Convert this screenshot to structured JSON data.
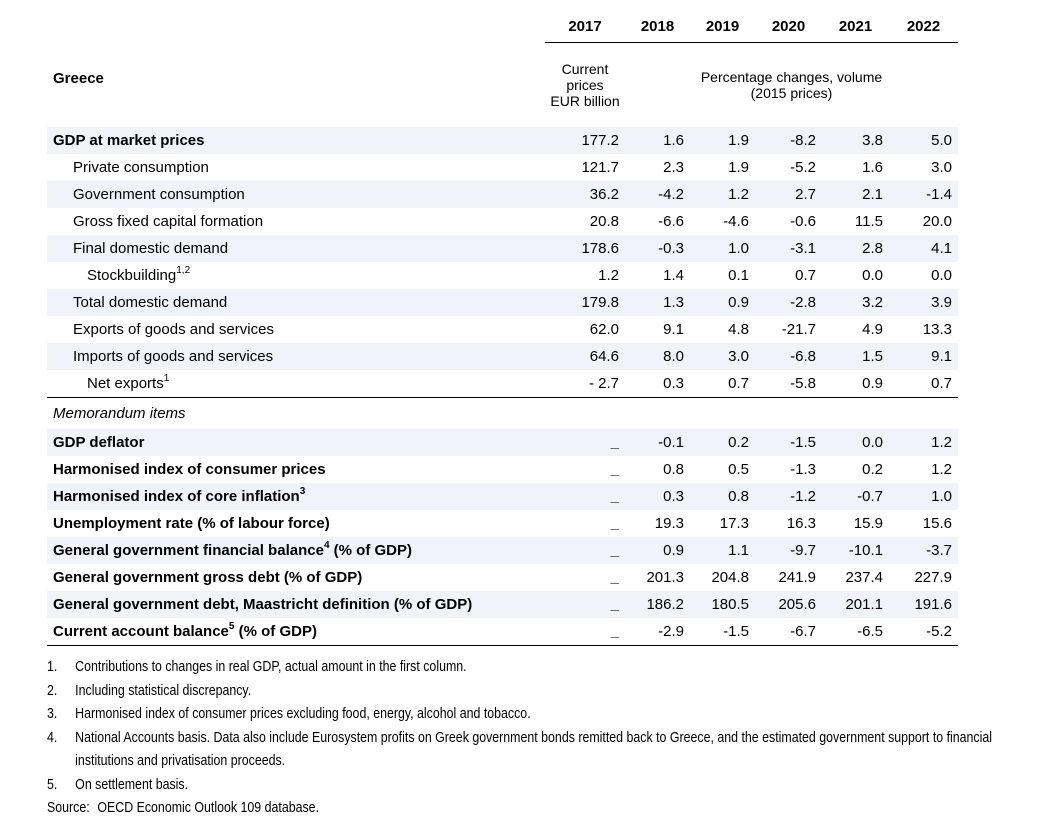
{
  "page": {
    "region_label": "Greece"
  },
  "chart_data": {
    "type": "table",
    "title": "Greece",
    "columns": [
      "2017",
      "2018",
      "2019",
      "2020",
      "2021",
      "2022"
    ],
    "column_units": [
      "Current prices EUR billion",
      "Percentage changes, volume (2015 prices)"
    ],
    "rows_note": "see table.rows and table.memo.rows for all values"
  },
  "table": {
    "years": [
      "2017",
      "2018",
      "2019",
      "2020",
      "2021",
      "2022"
    ],
    "subheader": {
      "first_col_lines": [
        "Current",
        "prices",
        "EUR billion"
      ],
      "volume_note_lines": [
        "Percentage changes, volume",
        "(2015 prices)"
      ]
    },
    "rows": [
      {
        "label": "GDP at market prices",
        "sup": "",
        "suffix": "",
        "indent": 0,
        "shaded": true,
        "values": [
          "177.2",
          "1.6",
          "1.9",
          "-8.2",
          "3.8",
          "5.0"
        ]
      },
      {
        "label": "Private consumption",
        "sup": "",
        "suffix": "",
        "indent": 1,
        "shaded": false,
        "values": [
          "121.7",
          "2.3",
          "1.9",
          "-5.2",
          "1.6",
          "3.0"
        ]
      },
      {
        "label": "Government consumption",
        "sup": "",
        "suffix": "",
        "indent": 1,
        "shaded": true,
        "values": [
          "36.2",
          "-4.2",
          "1.2",
          "2.7",
          "2.1",
          "-1.4"
        ]
      },
      {
        "label": "Gross fixed capital formation",
        "sup": "",
        "suffix": "",
        "indent": 1,
        "shaded": false,
        "values": [
          "20.8",
          "-6.6",
          "-4.6",
          "-0.6",
          "11.5",
          "20.0"
        ]
      },
      {
        "label": "Final domestic demand",
        "sup": "",
        "suffix": "",
        "indent": 1,
        "shaded": true,
        "values": [
          "178.6",
          "-0.3",
          "1.0",
          "-3.1",
          "2.8",
          "4.1"
        ]
      },
      {
        "label": "Stockbuilding",
        "sup": "1,2",
        "suffix": "",
        "indent": 2,
        "shaded": false,
        "values": [
          "1.2",
          "1.4",
          "0.1",
          "0.7",
          "0.0",
          "0.0"
        ]
      },
      {
        "label": "Total domestic demand",
        "sup": "",
        "suffix": "",
        "indent": 1,
        "shaded": true,
        "values": [
          "179.8",
          "1.3",
          "0.9",
          "-2.8",
          "3.2",
          "3.9"
        ]
      },
      {
        "label": "Exports of goods and services",
        "sup": "",
        "suffix": "",
        "indent": 1,
        "shaded": false,
        "values": [
          "62.0",
          "9.1",
          "4.8",
          "-21.7",
          "4.9",
          "13.3"
        ]
      },
      {
        "label": "Imports of goods and services",
        "sup": "",
        "suffix": "",
        "indent": 1,
        "shaded": true,
        "values": [
          "64.6",
          "8.0",
          "3.0",
          "-6.8",
          "1.5",
          "9.1"
        ]
      },
      {
        "label": "Net exports",
        "sup": "1",
        "suffix": "",
        "indent": 2,
        "shaded": false,
        "rule_after": true,
        "values": [
          "- 2.7",
          "0.3",
          "0.7",
          "-5.8",
          "0.9",
          "0.7"
        ]
      }
    ],
    "memo": {
      "header": "Memorandum items",
      "rows": [
        {
          "label": "GDP deflator",
          "sup": "",
          "suffix": "",
          "indent": 0,
          "shaded": true,
          "values": [
            "_",
            "-0.1",
            "0.2",
            "-1.5",
            "0.0",
            "1.2"
          ]
        },
        {
          "label": "Harmonised index of consumer prices",
          "sup": "",
          "suffix": "",
          "indent": 0,
          "shaded": false,
          "values": [
            "_",
            "0.8",
            "0.5",
            "-1.3",
            "0.2",
            "1.2"
          ]
        },
        {
          "label": "Harmonised index of core inflation",
          "sup": "3",
          "suffix": "",
          "indent": 0,
          "shaded": true,
          "values": [
            "_",
            "0.3",
            "0.8",
            "-1.2",
            "-0.7",
            "1.0"
          ]
        },
        {
          "label": "Unemployment rate (% of labour force)",
          "sup": "",
          "suffix": "",
          "indent": 0,
          "shaded": false,
          "values": [
            "_",
            "19.3",
            "17.3",
            "16.3",
            "15.9",
            "15.6"
          ]
        },
        {
          "label": "General government financial balance",
          "sup": "4",
          "suffix": " (% of GDP)",
          "indent": 0,
          "shaded": true,
          "values": [
            "_",
            "0.9",
            "1.1",
            "-9.7",
            "-10.1",
            "-3.7"
          ]
        },
        {
          "label": "General government gross debt (% of GDP)",
          "sup": "",
          "suffix": "",
          "indent": 0,
          "shaded": false,
          "values": [
            "_",
            "201.3",
            "204.8",
            "241.9",
            "237.4",
            "227.9"
          ]
        },
        {
          "label": "General government debt, Maastricht definition (% of GDP)",
          "sup": "",
          "suffix": "",
          "indent": 0,
          "shaded": true,
          "values": [
            "_",
            "186.2",
            "180.5",
            "205.6",
            "201.1",
            "191.6"
          ]
        },
        {
          "label": "Current account balance",
          "sup": "5",
          "suffix": " (% of GDP)",
          "indent": 0,
          "shaded": false,
          "rule_after": true,
          "values": [
            "_",
            "-2.9",
            "-1.5",
            "-6.7",
            "-6.5",
            "-5.2"
          ]
        }
      ]
    }
  },
  "footnotes": {
    "items": [
      {
        "num": "1.",
        "text": "Contributions to changes in real GDP, actual amount in the first column."
      },
      {
        "num": "2.",
        "text": "Including statistical discrepancy."
      },
      {
        "num": "3.",
        "text": "Harmonised index of consumer prices excluding food, energy, alcohol and tobacco."
      },
      {
        "num": "4.",
        "text": "National Accounts basis. Data also include Eurosystem profits on Greek government bonds remitted back to Greece, and the estimated government support to financial institutions and privatisation proceeds."
      },
      {
        "num": "5.",
        "text": "On settlement basis."
      }
    ],
    "source_label": "Source:",
    "source_text": "OECD Economic Outlook 109 database."
  }
}
